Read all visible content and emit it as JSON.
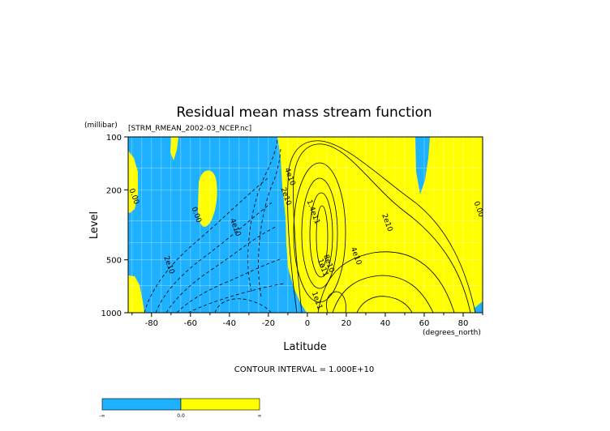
{
  "chart_data": {
    "type": "contour",
    "title": "Residual mean mass stream function",
    "source_label": "[STRM_RMEAN_2002-03_NCEP.nc]",
    "xlabel": "Latitude",
    "x_units": "(degrees_north)",
    "ylabel": "Level",
    "y_units": "(millibar)",
    "x_ticks": [
      -80,
      -60,
      -40,
      -20,
      0,
      20,
      40,
      60,
      80
    ],
    "x_tick_labels": [
      "-80",
      "-60",
      "-40",
      "-20",
      "0",
      "20",
      "40",
      "60",
      "80"
    ],
    "xlim": [
      -92,
      90
    ],
    "y_ticks": [
      100,
      200,
      500,
      1000
    ],
    "y_tick_labels": [
      "100",
      "200",
      "500",
      "1000"
    ],
    "ylim": [
      1000,
      100
    ],
    "y_scale": "log",
    "contour_interval_text": "CONTOUR INTERVAL = 1.000E+10",
    "contour_labels": [
      {
        "text": "0.00",
        "x": -90,
        "y": 220
      },
      {
        "text": "0.00",
        "x": -58,
        "y": 280
      },
      {
        "text": "2e10",
        "x": -72,
        "y": 540
      },
      {
        "text": "4e10",
        "x": -38,
        "y": 330
      },
      {
        "text": "2e10",
        "x": -12,
        "y": 220
      },
      {
        "text": "4e10",
        "x": -10,
        "y": 170
      },
      {
        "text": "1.4e11",
        "x": 2,
        "y": 270
      },
      {
        "text": "1e11",
        "x": 7,
        "y": 560
      },
      {
        "text": "8e10",
        "x": 10,
        "y": 530
      },
      {
        "text": "2e10",
        "x": 40,
        "y": 310
      },
      {
        "text": "4e10",
        "x": 24,
        "y": 480
      },
      {
        "text": "1e11",
        "x": 4,
        "y": 860
      },
      {
        "text": "0.00",
        "x": 87,
        "y": 260
      }
    ],
    "regions": {
      "negative_color": "#1eb1ff",
      "positive_color": "#ffff00"
    },
    "colorbar": {
      "labels": [
        "-∞",
        "0.0",
        "∞"
      ],
      "colors": [
        "#1eb1ff",
        "#ffff00"
      ]
    }
  }
}
